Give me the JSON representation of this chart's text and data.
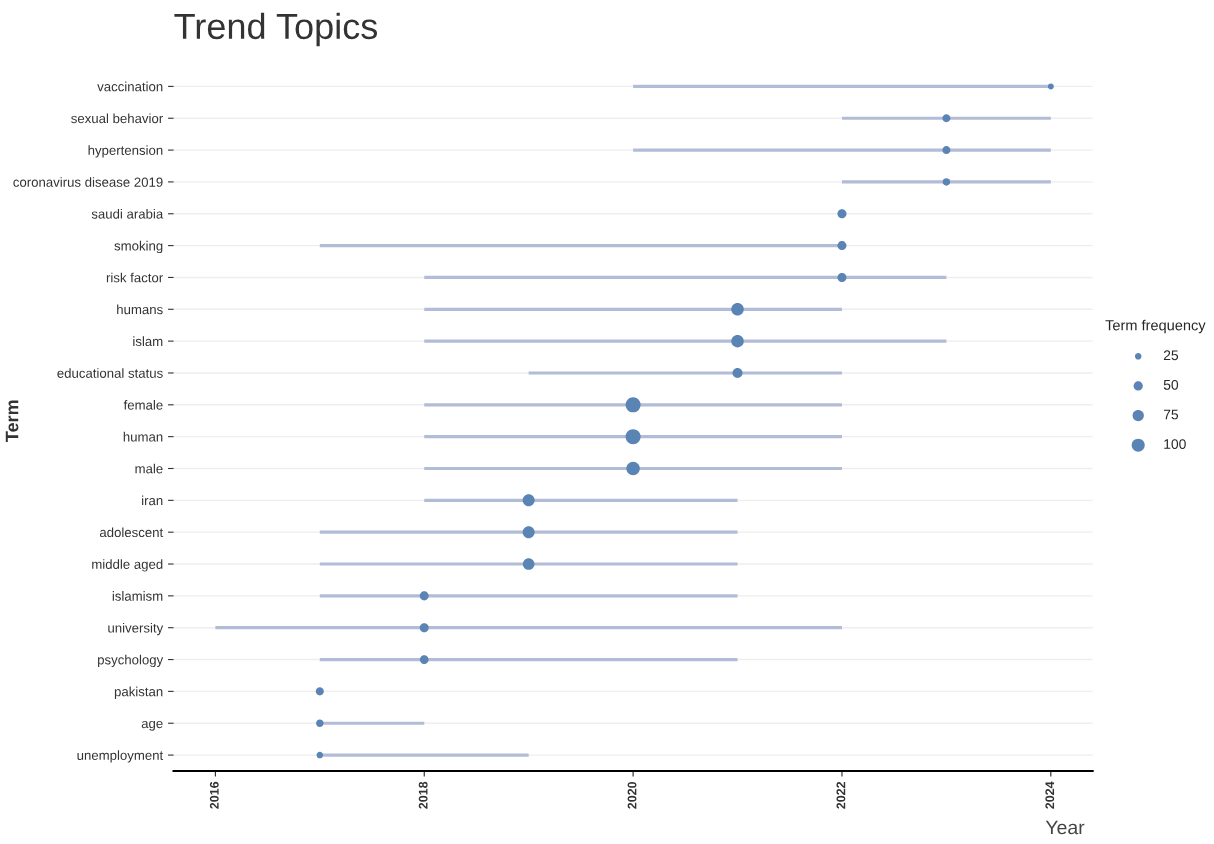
{
  "chart_data": {
    "type": "bar",
    "orientation": "horizontal",
    "title": "Trend Topics",
    "xlabel": "Year",
    "ylabel": "Term",
    "legend_title": "Term frequency",
    "grid": "y",
    "categories": [
      "vaccination",
      "sexual behavior",
      "hypertension",
      "coronavirus disease 2019",
      "saudi arabia",
      "smoking",
      "risk factor",
      "humans",
      "islam",
      "educational status",
      "female",
      "human",
      "male",
      "iran",
      "adolescent",
      "middle aged",
      "islamism",
      "university",
      "psychology",
      "pakistan",
      "age",
      "unemployment"
    ],
    "xlim": [
      2015.6,
      2024.4
    ],
    "xticks": [
      2016,
      2018,
      2020,
      2022,
      2024
    ],
    "size_legend": [
      25,
      50,
      75,
      100
    ],
    "series": [
      {
        "color": "#b3bcd6",
        "base": [
          2020,
          2022,
          2020,
          2022,
          null,
          2017,
          2018,
          2018,
          2018,
          2019,
          2018,
          2018,
          2018,
          2018,
          2017,
          2017,
          2017,
          2016,
          2017,
          null,
          2017,
          2017
        ],
        "values": [
          4,
          2,
          4,
          2,
          null,
          5,
          5,
          4,
          5,
          3,
          4,
          4,
          4,
          3,
          4,
          4,
          4,
          6,
          4,
          null,
          1,
          2
        ]
      },
      {
        "type": "bubble",
        "color": "#5a84b4",
        "values": [
          2024,
          2023,
          2023,
          2023,
          2022,
          2022,
          2022,
          2021,
          2021,
          2021,
          2020,
          2020,
          2020,
          2019,
          2019,
          2019,
          2018,
          2018,
          2018,
          2017,
          2017,
          2017
        ],
        "sizes": [
          21,
          38,
          38,
          33,
          48,
          48,
          48,
          92,
          92,
          59,
          133,
          133,
          108,
          85,
          85,
          80,
          48,
          48,
          45,
          38,
          33,
          25
        ]
      }
    ]
  }
}
